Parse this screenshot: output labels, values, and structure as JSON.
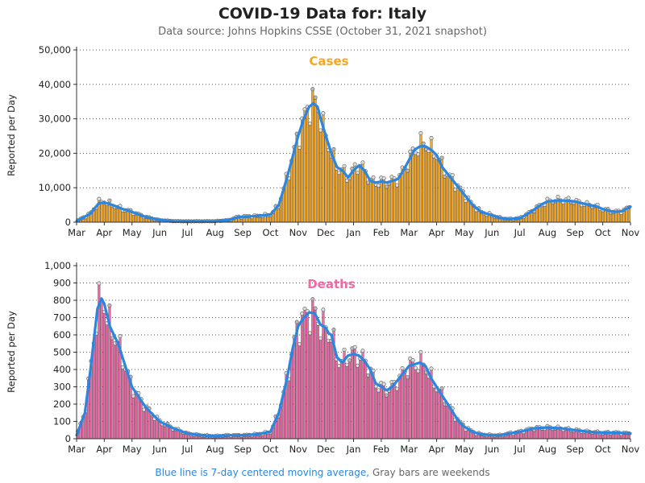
{
  "header": {
    "title": "COVID-19 Data for: Italy",
    "subtitle": "Data source: Johns Hopkins CSSE (October 31, 2021 snapshot)"
  },
  "footer": {
    "moving_avg_note": "Blue line is 7-day centered moving average,",
    "weekend_note": "Gray bars are weekends"
  },
  "colors": {
    "cases": "#f5a623",
    "deaths": "#ee6aa7",
    "moving_average": "#2b86e0",
    "weekend_bar": "#999999"
  },
  "chart_data": [
    {
      "type": "bar",
      "title": "Cases",
      "ylabel": "Reported per Day",
      "ylim": [
        0,
        50000
      ],
      "yticks": [
        "0",
        "10,000",
        "20,000",
        "30,000",
        "40,000",
        "50,000"
      ],
      "ytick_values": [
        0,
        10000,
        20000,
        30000,
        40000,
        50000
      ],
      "x_tick_labels": [
        "Mar",
        "Apr",
        "May",
        "Jun",
        "Jul",
        "Aug",
        "Sep",
        "Oct",
        "Nov",
        "Dec",
        "Jan",
        "Feb",
        "Mar",
        "Apr",
        "May",
        "Jun",
        "Jul",
        "Aug",
        "Sep",
        "Oct",
        "Nov"
      ],
      "x_tick_months": [
        0,
        1,
        2,
        3,
        4,
        5,
        6,
        7,
        8,
        9,
        10,
        11,
        12,
        13,
        14,
        15,
        16,
        17,
        18,
        19,
        20
      ],
      "x_range_months": [
        0,
        20
      ],
      "grid": "horizontal dotted",
      "series": [
        {
          "type": "bar",
          "x_month": [
            0,
            0.5,
            0.8,
            1,
            1.3,
            1.6,
            2,
            2.5,
            3,
            3.5,
            4,
            4.5,
            5,
            5.5,
            5.8,
            6,
            6.5,
            7,
            7.3,
            7.6,
            8,
            8.2,
            8.4,
            8.55,
            8.7,
            8.85,
            9,
            9.2,
            9.4,
            9.6,
            9.8,
            10,
            10.2,
            10.4,
            10.6,
            10.8,
            11,
            11.2,
            11.4,
            11.6,
            11.8,
            12,
            12.2,
            12.4,
            12.6,
            12.8,
            13,
            13.2,
            13.4,
            13.6,
            13.8,
            14,
            14.3,
            14.6,
            15,
            15.3,
            15.6,
            16,
            16.4,
            16.8,
            17,
            17.4,
            17.8,
            18,
            18.4,
            18.8,
            19,
            19.4,
            19.7,
            20
          ],
          "values": [
            300,
            2500,
            5800,
            6000,
            5000,
            4000,
            3000,
            1500,
            600,
            300,
            250,
            250,
            300,
            600,
            1500,
            1600,
            1800,
            2200,
            5000,
            13000,
            25000,
            30000,
            34000,
            35000,
            34000,
            29000,
            25000,
            20000,
            16000,
            15000,
            13000,
            15000,
            17000,
            15000,
            12000,
            11500,
            12000,
            11500,
            12000,
            12500,
            15000,
            18000,
            21000,
            22500,
            23000,
            21000,
            20000,
            16000,
            14000,
            12000,
            10000,
            8000,
            5000,
            3000,
            2000,
            1200,
            900,
            1100,
            3000,
            5200,
            6000,
            6500,
            6300,
            6000,
            5200,
            4500,
            3800,
            3000,
            3200,
            4500
          ]
        },
        {
          "type": "line",
          "name": "7-day centered moving average",
          "x_month": [
            0,
            0.5,
            0.8,
            1,
            1.3,
            1.6,
            2,
            2.5,
            3,
            3.5,
            4,
            4.5,
            5,
            5.5,
            5.8,
            6,
            6.5,
            7,
            7.3,
            7.6,
            8,
            8.2,
            8.4,
            8.55,
            8.7,
            8.85,
            9,
            9.2,
            9.4,
            9.6,
            9.8,
            10,
            10.2,
            10.4,
            10.6,
            10.8,
            11,
            11.2,
            11.4,
            11.6,
            11.8,
            12,
            12.2,
            12.4,
            12.6,
            12.8,
            13,
            13.2,
            13.4,
            13.6,
            13.8,
            14,
            14.3,
            14.6,
            15,
            15.3,
            15.6,
            16,
            16.4,
            16.8,
            17,
            17.4,
            17.8,
            18,
            18.4,
            18.8,
            19,
            19.4,
            19.7,
            20
          ],
          "values": [
            300,
            2500,
            5500,
            5700,
            5000,
            4000,
            3000,
            1500,
            600,
            300,
            250,
            250,
            300,
            600,
            1400,
            1600,
            1800,
            2200,
            5000,
            13000,
            25000,
            30000,
            33500,
            34500,
            33500,
            29000,
            25000,
            20000,
            16000,
            15000,
            13000,
            15000,
            16500,
            15000,
            12000,
            11500,
            11800,
            11500,
            12000,
            12500,
            15000,
            18000,
            21000,
            22000,
            22000,
            21000,
            19500,
            16000,
            14000,
            12000,
            10000,
            8000,
            5000,
            3000,
            2000,
            1200,
            900,
            1100,
            3000,
            5200,
            6000,
            6300,
            6200,
            6000,
            5200,
            4500,
            3800,
            3000,
            3200,
            4500
          ]
        }
      ]
    },
    {
      "type": "bar",
      "title": "Deaths",
      "ylabel": "Reported per Day",
      "ylim": [
        0,
        1000
      ],
      "yticks": [
        "0",
        "100",
        "200",
        "300",
        "400",
        "500",
        "600",
        "700",
        "800",
        "900",
        "1,000"
      ],
      "ytick_values": [
        0,
        100,
        200,
        300,
        400,
        500,
        600,
        700,
        800,
        900,
        1000
      ],
      "x_tick_labels": [
        "Mar",
        "Apr",
        "May",
        "Jun",
        "Jul",
        "Aug",
        "Sep",
        "Oct",
        "Nov",
        "Dec",
        "Jan",
        "Feb",
        "Mar",
        "Apr",
        "May",
        "Jun",
        "Jul",
        "Aug",
        "Sep",
        "Oct",
        "Nov"
      ],
      "x_tick_months": [
        0,
        1,
        2,
        3,
        4,
        5,
        6,
        7,
        8,
        9,
        10,
        11,
        12,
        13,
        14,
        15,
        16,
        17,
        18,
        19,
        20
      ],
      "x_range_months": [
        0,
        20
      ],
      "grid": "horizontal dotted",
      "series": [
        {
          "type": "bar",
          "x_month": [
            0,
            0.3,
            0.5,
            0.75,
            0.9,
            1,
            1.2,
            1.5,
            1.8,
            2,
            2.5,
            3,
            3.5,
            4,
            4.5,
            5,
            5.5,
            6,
            6.5,
            7,
            7.3,
            7.6,
            7.8,
            8,
            8.2,
            8.4,
            8.6,
            8.8,
            9,
            9.1,
            9.2,
            9.4,
            9.6,
            9.8,
            10,
            10.2,
            10.4,
            10.6,
            10.8,
            11,
            11.2,
            11.4,
            11.6,
            11.8,
            12,
            12.2,
            12.4,
            12.6,
            12.8,
            13,
            13.2,
            13.4,
            13.6,
            13.8,
            14,
            14.3,
            14.6,
            15,
            15.3,
            15.6,
            16,
            16.5,
            17,
            17.5,
            18,
            18.5,
            19,
            19.5,
            20
          ],
          "values": [
            20,
            150,
            400,
            750,
            810,
            780,
            650,
            550,
            400,
            300,
            180,
            100,
            60,
            30,
            20,
            15,
            20,
            20,
            25,
            40,
            150,
            350,
            520,
            650,
            700,
            730,
            725,
            660,
            640,
            610,
            600,
            470,
            440,
            480,
            490,
            480,
            450,
            400,
            320,
            300,
            280,
            300,
            340,
            380,
            420,
            430,
            440,
            420,
            350,
            300,
            250,
            200,
            150,
            100,
            70,
            40,
            25,
            20,
            20,
            30,
            40,
            60,
            65,
            60,
            50,
            40,
            35,
            35,
            30
          ]
        },
        {
          "type": "line",
          "name": "7-day centered moving average",
          "x_month": [
            0,
            0.3,
            0.5,
            0.75,
            0.9,
            1,
            1.2,
            1.5,
            1.8,
            2,
            2.5,
            3,
            3.5,
            4,
            4.5,
            5,
            5.5,
            6,
            6.5,
            7,
            7.3,
            7.6,
            7.8,
            8,
            8.2,
            8.4,
            8.6,
            8.8,
            9,
            9.1,
            9.2,
            9.4,
            9.6,
            9.8,
            10,
            10.2,
            10.4,
            10.6,
            10.8,
            11,
            11.2,
            11.4,
            11.6,
            11.8,
            12,
            12.2,
            12.4,
            12.6,
            12.8,
            13,
            13.2,
            13.4,
            13.6,
            13.8,
            14,
            14.3,
            14.6,
            15,
            15.3,
            15.6,
            16,
            16.5,
            17,
            17.5,
            18,
            18.5,
            19,
            19.5,
            20
          ],
          "values": [
            20,
            150,
            400,
            750,
            810,
            780,
            650,
            550,
            400,
            300,
            180,
            100,
            60,
            30,
            20,
            15,
            20,
            20,
            25,
            40,
            150,
            350,
            520,
            650,
            700,
            730,
            725,
            660,
            640,
            610,
            600,
            470,
            440,
            480,
            490,
            480,
            450,
            400,
            320,
            300,
            280,
            300,
            340,
            380,
            420,
            430,
            440,
            420,
            350,
            300,
            250,
            200,
            150,
            100,
            70,
            40,
            25,
            20,
            20,
            30,
            40,
            60,
            65,
            60,
            50,
            40,
            35,
            35,
            30
          ]
        }
      ]
    }
  ]
}
